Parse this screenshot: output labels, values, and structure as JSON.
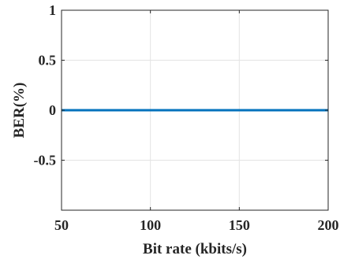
{
  "chart_data": {
    "type": "line",
    "xlabel": "Bit rate (kbits/s)",
    "ylabel": "BER(%)",
    "xlim": [
      50,
      200
    ],
    "ylim": [
      -1,
      1
    ],
    "x_ticks": [
      50,
      100,
      150,
      200
    ],
    "x_tick_labels": [
      "50",
      "100",
      "150",
      "200"
    ],
    "y_ticks": [
      1,
      0.5,
      0,
      -0.5
    ],
    "y_tick_labels": [
      "1",
      "0.5",
      "0",
      "-0.5"
    ],
    "grid": true,
    "series": [
      {
        "x": [
          50,
          200
        ],
        "y": [
          0,
          0
        ],
        "color": "#0072BD"
      }
    ]
  }
}
